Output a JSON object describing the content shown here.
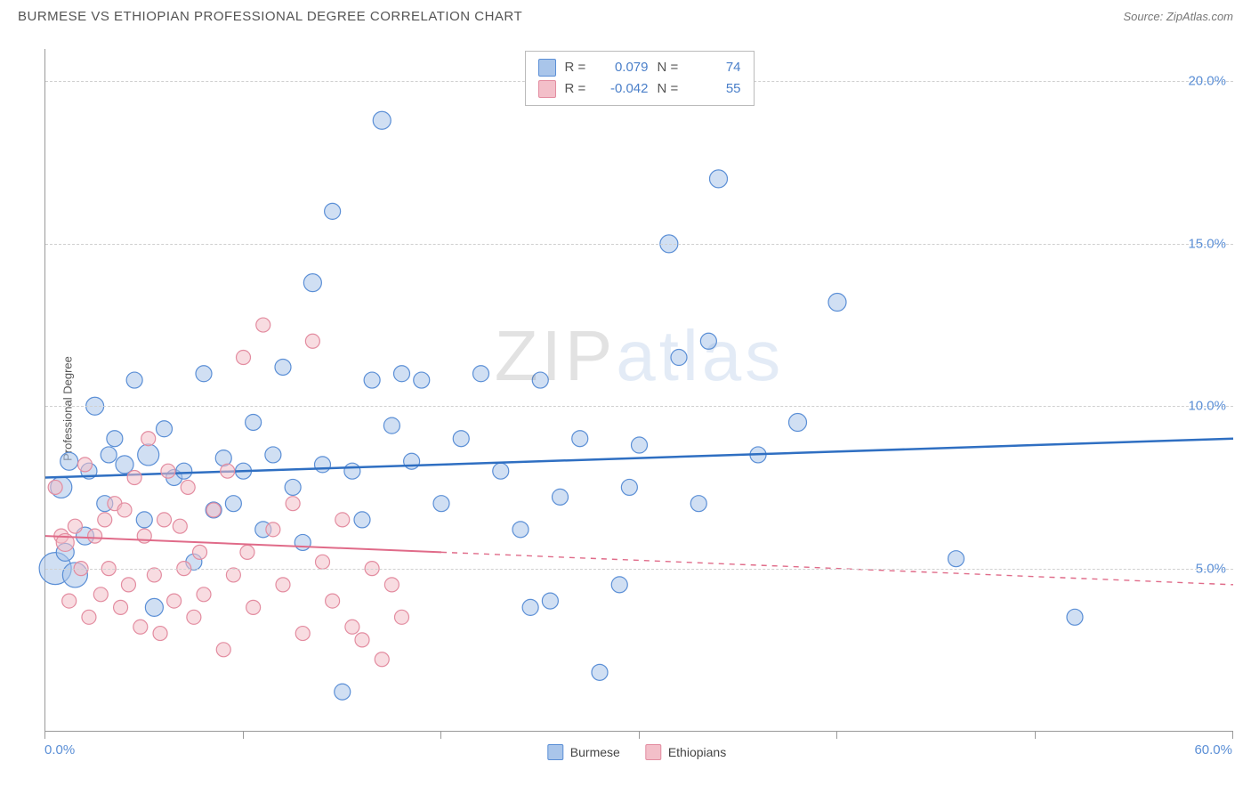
{
  "title": "BURMESE VS ETHIOPIAN PROFESSIONAL DEGREE CORRELATION CHART",
  "source": "Source: ZipAtlas.com",
  "ylabel": "Professional Degree",
  "watermark": {
    "part1": "ZIP",
    "part2": "atlas"
  },
  "chart": {
    "type": "scatter",
    "background_color": "#ffffff",
    "grid_color": "#d0d0d0",
    "axis_color": "#999999",
    "tick_label_color": "#5b8fd6",
    "tick_fontsize": 15,
    "xlim": [
      0,
      60
    ],
    "ylim": [
      0,
      21
    ],
    "y_gridlines": [
      5,
      10,
      15,
      20
    ],
    "y_tick_labels": [
      "5.0%",
      "10.0%",
      "15.0%",
      "20.0%"
    ],
    "x_ticks": [
      0,
      10,
      20,
      30,
      40,
      50,
      60
    ],
    "x_tick_labels": {
      "0": "0.0%",
      "60": "60.0%"
    },
    "series": [
      {
        "name": "Burmese",
        "fill_color": "#a9c5ea",
        "fill_opacity": 0.55,
        "stroke_color": "#5b8fd6",
        "marker_radius": 9,
        "trend": {
          "color": "#2f6fc2",
          "width": 2.5,
          "y_at_xmin": 7.8,
          "y_at_xmax": 9.0,
          "solid_until_x": 60
        },
        "R": "0.079",
        "N": "74",
        "points": [
          [
            0.5,
            5.0,
            18
          ],
          [
            0.8,
            7.5,
            12
          ],
          [
            1.0,
            5.5,
            10
          ],
          [
            1.2,
            8.3,
            10
          ],
          [
            1.5,
            4.8,
            14
          ],
          [
            2.0,
            6.0,
            10
          ],
          [
            2.2,
            8.0,
            9
          ],
          [
            2.5,
            10.0,
            10
          ],
          [
            3.0,
            7.0,
            9
          ],
          [
            3.2,
            8.5,
            9
          ],
          [
            3.5,
            9.0,
            9
          ],
          [
            4.0,
            8.2,
            10
          ],
          [
            4.5,
            10.8,
            9
          ],
          [
            5.0,
            6.5,
            9
          ],
          [
            5.2,
            8.5,
            12
          ],
          [
            5.5,
            3.8,
            10
          ],
          [
            6.0,
            9.3,
            9
          ],
          [
            6.5,
            7.8,
            9
          ],
          [
            7.0,
            8.0,
            9
          ],
          [
            7.5,
            5.2,
            9
          ],
          [
            8.0,
            11.0,
            9
          ],
          [
            8.5,
            6.8,
            9
          ],
          [
            9.0,
            8.4,
            9
          ],
          [
            9.5,
            7.0,
            9
          ],
          [
            10.0,
            8.0,
            9
          ],
          [
            10.5,
            9.5,
            9
          ],
          [
            11.0,
            6.2,
            9
          ],
          [
            11.5,
            8.5,
            9
          ],
          [
            12.0,
            11.2,
            9
          ],
          [
            12.5,
            7.5,
            9
          ],
          [
            13.0,
            5.8,
            9
          ],
          [
            13.5,
            13.8,
            10
          ],
          [
            14.0,
            8.2,
            9
          ],
          [
            14.5,
            16.0,
            9
          ],
          [
            15.0,
            1.2,
            9
          ],
          [
            15.5,
            8.0,
            9
          ],
          [
            16.0,
            6.5,
            9
          ],
          [
            16.5,
            10.8,
            9
          ],
          [
            17.0,
            18.8,
            10
          ],
          [
            17.5,
            9.4,
            9
          ],
          [
            18.0,
            11.0,
            9
          ],
          [
            18.5,
            8.3,
            9
          ],
          [
            19.0,
            10.8,
            9
          ],
          [
            20.0,
            7.0,
            9
          ],
          [
            21.0,
            9.0,
            9
          ],
          [
            22.0,
            11.0,
            9
          ],
          [
            23.0,
            8.0,
            9
          ],
          [
            24.0,
            6.2,
            9
          ],
          [
            24.5,
            3.8,
            9
          ],
          [
            25.0,
            10.8,
            9
          ],
          [
            25.5,
            4.0,
            9
          ],
          [
            26.0,
            7.2,
            9
          ],
          [
            27.0,
            9.0,
            9
          ],
          [
            28.0,
            1.8,
            9
          ],
          [
            29.0,
            4.5,
            9
          ],
          [
            29.5,
            7.5,
            9
          ],
          [
            30.0,
            8.8,
            9
          ],
          [
            31.5,
            15.0,
            10
          ],
          [
            32.0,
            11.5,
            9
          ],
          [
            33.0,
            7.0,
            9
          ],
          [
            33.5,
            12.0,
            9
          ],
          [
            34.0,
            17.0,
            10
          ],
          [
            36.0,
            8.5,
            9
          ],
          [
            38.0,
            9.5,
            10
          ],
          [
            40.0,
            13.2,
            10
          ],
          [
            46.0,
            5.3,
            9
          ],
          [
            52.0,
            3.5,
            9
          ]
        ]
      },
      {
        "name": "Ethiopians",
        "fill_color": "#f3bfc9",
        "fill_opacity": 0.55,
        "stroke_color": "#e38ca0",
        "marker_radius": 8,
        "trend": {
          "color": "#e06b89",
          "width": 2,
          "y_at_xmin": 6.0,
          "y_at_xmax": 4.5,
          "solid_until_x": 20
        },
        "R": "-0.042",
        "N": "55",
        "points": [
          [
            0.5,
            7.5,
            8
          ],
          [
            0.8,
            6.0,
            8
          ],
          [
            1.0,
            5.8,
            10
          ],
          [
            1.2,
            4.0,
            8
          ],
          [
            1.5,
            6.3,
            8
          ],
          [
            1.8,
            5.0,
            8
          ],
          [
            2.0,
            8.2,
            8
          ],
          [
            2.2,
            3.5,
            8
          ],
          [
            2.5,
            6.0,
            8
          ],
          [
            2.8,
            4.2,
            8
          ],
          [
            3.0,
            6.5,
            8
          ],
          [
            3.2,
            5.0,
            8
          ],
          [
            3.5,
            7.0,
            8
          ],
          [
            3.8,
            3.8,
            8
          ],
          [
            4.0,
            6.8,
            8
          ],
          [
            4.2,
            4.5,
            8
          ],
          [
            4.5,
            7.8,
            8
          ],
          [
            4.8,
            3.2,
            8
          ],
          [
            5.0,
            6.0,
            8
          ],
          [
            5.2,
            9.0,
            8
          ],
          [
            5.5,
            4.8,
            8
          ],
          [
            5.8,
            3.0,
            8
          ],
          [
            6.0,
            6.5,
            8
          ],
          [
            6.2,
            8.0,
            8
          ],
          [
            6.5,
            4.0,
            8
          ],
          [
            6.8,
            6.3,
            8
          ],
          [
            7.0,
            5.0,
            8
          ],
          [
            7.2,
            7.5,
            8
          ],
          [
            7.5,
            3.5,
            8
          ],
          [
            7.8,
            5.5,
            8
          ],
          [
            8.0,
            4.2,
            8
          ],
          [
            8.5,
            6.8,
            8
          ],
          [
            9.0,
            2.5,
            8
          ],
          [
            9.2,
            8.0,
            8
          ],
          [
            9.5,
            4.8,
            8
          ],
          [
            10.0,
            11.5,
            8
          ],
          [
            10.2,
            5.5,
            8
          ],
          [
            10.5,
            3.8,
            8
          ],
          [
            11.0,
            12.5,
            8
          ],
          [
            11.5,
            6.2,
            8
          ],
          [
            12.0,
            4.5,
            8
          ],
          [
            12.5,
            7.0,
            8
          ],
          [
            13.0,
            3.0,
            8
          ],
          [
            13.5,
            12.0,
            8
          ],
          [
            14.0,
            5.2,
            8
          ],
          [
            14.5,
            4.0,
            8
          ],
          [
            15.0,
            6.5,
            8
          ],
          [
            15.5,
            3.2,
            8
          ],
          [
            16.0,
            2.8,
            8
          ],
          [
            16.5,
            5.0,
            8
          ],
          [
            17.0,
            2.2,
            8
          ],
          [
            17.5,
            4.5,
            8
          ],
          [
            18.0,
            3.5,
            8
          ]
        ]
      }
    ]
  },
  "bottom_legend": [
    {
      "label": "Burmese",
      "fill": "#a9c5ea",
      "stroke": "#5b8fd6"
    },
    {
      "label": "Ethiopians",
      "fill": "#f3bfc9",
      "stroke": "#e38ca0"
    }
  ],
  "top_legend": {
    "r_label": "R =",
    "n_label": "N ="
  }
}
